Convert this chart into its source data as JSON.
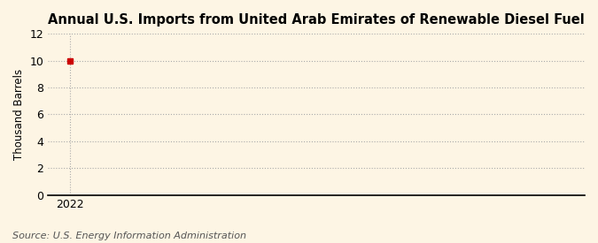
{
  "title": "Annual U.S. Imports from United Arab Emirates of Renewable Diesel Fuel",
  "ylabel": "Thousand Barrels",
  "source": "Source: U.S. Energy Information Administration",
  "x_data": [
    2022
  ],
  "y_data": [
    10
  ],
  "marker_color": "#cc0000",
  "marker_style": "s",
  "marker_size": 4,
  "ylim": [
    0,
    12
  ],
  "yticks": [
    0,
    2,
    4,
    6,
    8,
    10,
    12
  ],
  "xlim": [
    2021.7,
    2029.0
  ],
  "xticks": [
    2022
  ],
  "background_color": "#fdf5e4",
  "grid_color": "#aaaaaa",
  "grid_style": ":",
  "title_fontsize": 10.5,
  "axis_fontsize": 8.5,
  "tick_fontsize": 9,
  "source_fontsize": 8
}
